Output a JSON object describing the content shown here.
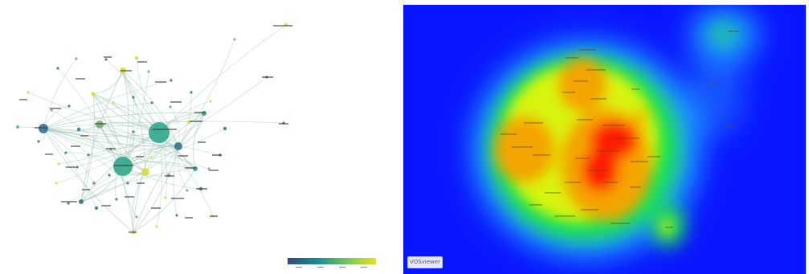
{
  "figure": {
    "left_panel": {
      "type": "network-overlay-visualization",
      "colors": {
        "edge": "#9fc7b7",
        "node_teal": "#2aa58a",
        "node_blue": "#2f6f8f",
        "node_yellow": "#d3df2f",
        "node_green": "#69b36c",
        "label": "#3b3b3b"
      }
    },
    "right_panel": {
      "type": "density-visualization",
      "colors": {
        "background": "#0a16ff",
        "green": "#1ee34b",
        "yellow": "#d7f50a",
        "orange": "#f4a400",
        "red": "#ff1f00"
      }
    },
    "legend": {
      "gradient": [
        "#2f4b7c",
        "#1b8f8d",
        "#7cc95a",
        "#e4e21e"
      ]
    },
    "logo": {
      "label": "VOSviewer"
    }
  }
}
